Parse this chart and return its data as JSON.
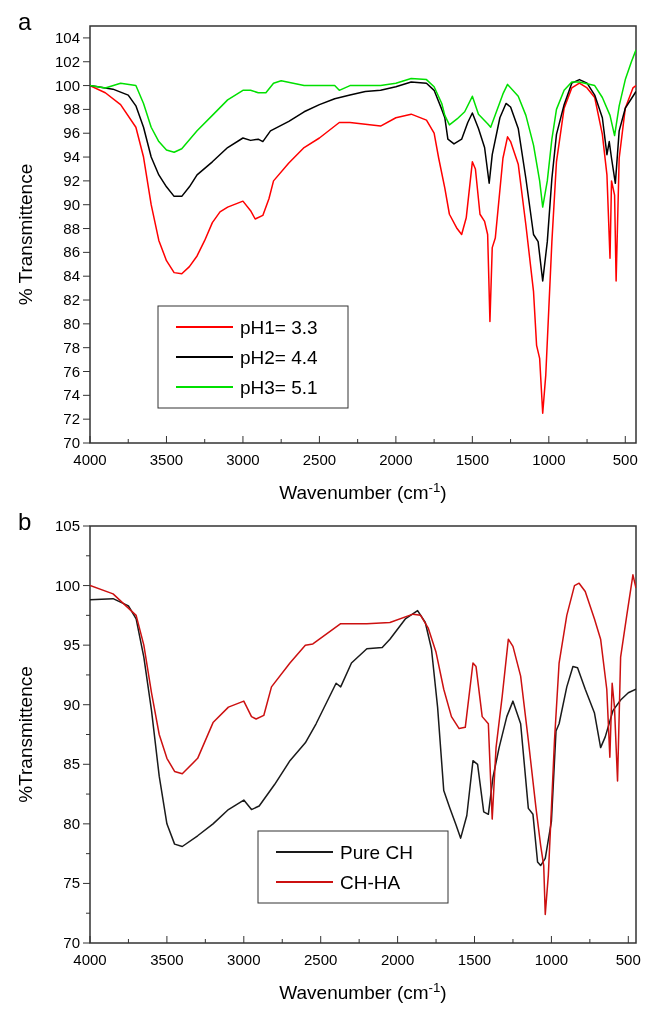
{
  "chart_data": [
    {
      "type": "line",
      "title": "a",
      "xlabel": "Wavenumber (cm$^{-1}$)",
      "ylabel": "% Transmittence",
      "xlim": [
        4000,
        430
      ],
      "ylim": [
        70,
        105
      ],
      "xticks": [
        4000,
        {
          "value": 3750,
          "label": null
        },
        3500,
        {
          "value": 3250,
          "label": null
        },
        3000,
        {
          "value": 2750,
          "label": null
        },
        2500,
        {
          "value": 2250,
          "label": null
        },
        2000,
        {
          "value": 1750,
          "label": null
        },
        1500,
        {
          "value": 1250,
          "label": null
        },
        1000,
        {
          "value": 750,
          "label": null
        },
        500
      ],
      "yticks": [
        70,
        72,
        74,
        76,
        78,
        80,
        82,
        84,
        86,
        88,
        90,
        92,
        94,
        96,
        98,
        100,
        102,
        104
      ],
      "grid": false,
      "legend": "bottom left",
      "line_style": "solid",
      "marker": "none",
      "series": [
        {
          "name": "pH1= 3.3",
          "color": "#ff0000",
          "x": [
            4000,
            3900,
            3800,
            3700,
            3650,
            3600,
            3550,
            3500,
            3450,
            3400,
            3350,
            3300,
            3250,
            3200,
            3150,
            3100,
            3000,
            2950,
            2920,
            2870,
            2830,
            2800,
            2700,
            2600,
            2500,
            2370,
            2300,
            2100,
            2000,
            1900,
            1800,
            1750,
            1720,
            1680,
            1650,
            1600,
            1570,
            1540,
            1500,
            1480,
            1450,
            1420,
            1400,
            1385,
            1370,
            1350,
            1300,
            1270,
            1250,
            1200,
            1150,
            1100,
            1080,
            1060,
            1040,
            1020,
            1000,
            980,
            950,
            900,
            850,
            800,
            750,
            700,
            650,
            620,
            600,
            590,
            570,
            560,
            540,
            500,
            450,
            430
          ],
          "values": [
            100,
            99.4,
            98.4,
            96.5,
            94,
            90,
            87,
            85.3,
            84.3,
            84.2,
            84.8,
            85.7,
            87,
            88.5,
            89.4,
            89.8,
            90.3,
            89.5,
            88.8,
            89.1,
            90.5,
            92,
            93.5,
            94.8,
            95.6,
            96.9,
            96.9,
            96.6,
            97.3,
            97.6,
            97.1,
            96,
            93.9,
            91.4,
            89.2,
            88,
            87.5,
            88.9,
            93.6,
            93,
            89.2,
            88.6,
            87.5,
            80.2,
            86.4,
            87.2,
            93.9,
            95.7,
            95.3,
            93.4,
            88.3,
            82.7,
            78.2,
            77.1,
            72.5,
            75.7,
            81.3,
            86.9,
            93.6,
            98.1,
            99.8,
            100.2,
            99.8,
            99,
            95.9,
            92.5,
            85.5,
            92,
            90.8,
            83.6,
            93.9,
            98.1,
            99.8,
            100
          ]
        },
        {
          "name": "pH2= 4.4",
          "color": "#000000",
          "x": [
            4000,
            3850,
            3750,
            3700,
            3650,
            3600,
            3550,
            3500,
            3450,
            3400,
            3350,
            3300,
            3200,
            3100,
            3000,
            2950,
            2900,
            2870,
            2820,
            2700,
            2600,
            2500,
            2400,
            2300,
            2200,
            2100,
            2000,
            1900,
            1800,
            1750,
            1700,
            1680,
            1660,
            1620,
            1570,
            1530,
            1500,
            1460,
            1420,
            1390,
            1370,
            1320,
            1280,
            1250,
            1200,
            1150,
            1100,
            1070,
            1040,
            1010,
            980,
            950,
            900,
            850,
            800,
            750,
            700,
            650,
            620,
            605,
            590,
            565,
            540,
            500,
            430
          ],
          "values": [
            100,
            99.7,
            99.2,
            98.3,
            96.5,
            94,
            92.5,
            91.5,
            90.7,
            90.7,
            91.5,
            92.5,
            93.6,
            94.8,
            95.6,
            95.4,
            95.5,
            95.3,
            96.2,
            97,
            97.8,
            98.4,
            98.9,
            99.2,
            99.5,
            99.6,
            99.9,
            100.3,
            100.2,
            99.6,
            98,
            97.3,
            95.5,
            95.1,
            95.5,
            96.9,
            97.7,
            96.4,
            94.8,
            91.8,
            94.2,
            97.3,
            98.5,
            98.2,
            96.4,
            92.2,
            87.5,
            86.9,
            83.6,
            86.9,
            92.2,
            95.9,
            98.4,
            100.2,
            100.5,
            100.2,
            99.2,
            97.3,
            94.2,
            95.3,
            93.9,
            91.8,
            96.2,
            98.1,
            99.5
          ]
        },
        {
          "name": "pH3= 5.1",
          "color": "#00e000",
          "x": [
            4000,
            3900,
            3800,
            3700,
            3650,
            3600,
            3550,
            3500,
            3450,
            3400,
            3300,
            3200,
            3100,
            3000,
            2950,
            2900,
            2850,
            2800,
            2750,
            2600,
            2500,
            2400,
            2370,
            2300,
            2100,
            2000,
            1900,
            1800,
            1750,
            1700,
            1680,
            1650,
            1600,
            1550,
            1500,
            1460,
            1400,
            1380,
            1300,
            1270,
            1200,
            1150,
            1100,
            1060,
            1040,
            1010,
            980,
            950,
            900,
            850,
            800,
            700,
            650,
            600,
            570,
            540,
            500,
            460,
            430
          ],
          "values": [
            100,
            99.8,
            100.2,
            100,
            98.5,
            96.5,
            95.3,
            94.6,
            94.4,
            94.7,
            96.2,
            97.5,
            98.8,
            99.6,
            99.6,
            99.4,
            99.4,
            100.2,
            100.4,
            100,
            100,
            100,
            99.6,
            100,
            100,
            100.2,
            100.6,
            100.5,
            99.9,
            98.5,
            97.5,
            96.7,
            97.2,
            97.8,
            99.1,
            97.6,
            96.8,
            96.5,
            99.3,
            100.1,
            99.1,
            97.5,
            95,
            92,
            89.8,
            92,
            95.5,
            98,
            99.6,
            100.3,
            100.3,
            100,
            99,
            97.5,
            95.8,
            98.3,
            100.5,
            102,
            103
          ]
        }
      ]
    },
    {
      "type": "line",
      "title": "b",
      "xlabel": "Wavenumber (cm$^{-1}$)",
      "ylabel": "%Transmittence",
      "xlim": [
        4000,
        450
      ],
      "ylim": [
        70,
        105
      ],
      "xticks": [
        4000,
        {
          "value": 3750,
          "label": null
        },
        3500,
        {
          "value": 3250,
          "label": null
        },
        3000,
        {
          "value": 2750,
          "label": null
        },
        2500,
        {
          "value": 2250,
          "label": null
        },
        2000,
        {
          "value": 1750,
          "label": null
        },
        1500,
        {
          "value": 1250,
          "label": null
        },
        1000,
        {
          "value": 750,
          "label": null
        },
        500
      ],
      "yticks": [
        70,
        {
          "value": 72.5,
          "label": null
        },
        75,
        {
          "value": 77.5,
          "label": null
        },
        80,
        {
          "value": 82.5,
          "label": null
        },
        85,
        {
          "value": 87.5,
          "label": null
        },
        90,
        {
          "value": 92.5,
          "label": null
        },
        95,
        {
          "value": 97.5,
          "label": null
        },
        100,
        {
          "value": 102.5,
          "label": null
        },
        105
      ],
      "grid": false,
      "legend": "bottom",
      "line_style": "solid",
      "marker": "none",
      "series": [
        {
          "name": "Pure CH",
          "color": "#1a1a1a",
          "x": [
            4000,
            3850,
            3750,
            3700,
            3650,
            3600,
            3550,
            3500,
            3450,
            3400,
            3300,
            3200,
            3100,
            3000,
            2950,
            2900,
            2800,
            2700,
            2600,
            2530,
            2400,
            2370,
            2300,
            2200,
            2100,
            2050,
            1950,
            1870,
            1820,
            1780,
            1740,
            1700,
            1660,
            1620,
            1590,
            1550,
            1510,
            1480,
            1440,
            1410,
            1380,
            1340,
            1290,
            1250,
            1200,
            1150,
            1120,
            1090,
            1070,
            1040,
            1000,
            970,
            950,
            900,
            860,
            830,
            780,
            720,
            680,
            650,
            600,
            550,
            500,
            450
          ],
          "values": [
            98.8,
            98.9,
            98.3,
            97.2,
            94,
            89.5,
            84,
            80,
            78.3,
            78.1,
            79,
            80,
            81.2,
            82,
            81.2,
            81.5,
            83.3,
            85.3,
            86.8,
            88.4,
            91.8,
            91.5,
            93.5,
            94.7,
            94.8,
            95.5,
            97.2,
            97.9,
            96.9,
            94.7,
            89.8,
            82.8,
            81.3,
            79.9,
            78.8,
            80.7,
            85.3,
            85,
            81,
            80.8,
            83.9,
            86.4,
            89,
            90.3,
            88.4,
            81.3,
            80.8,
            76.8,
            76.5,
            77.1,
            80.2,
            87.8,
            88.4,
            91.5,
            93.2,
            93.1,
            91.3,
            89.3,
            86.4,
            87.3,
            89.5,
            90.4,
            91,
            91.3
          ]
        },
        {
          "name": "CH-HA",
          "color": "#cc1010",
          "x": [
            4000,
            3850,
            3700,
            3650,
            3600,
            3550,
            3500,
            3450,
            3400,
            3300,
            3200,
            3100,
            3000,
            2950,
            2920,
            2870,
            2820,
            2700,
            2600,
            2551,
            2370,
            2200,
            2050,
            1900,
            1850,
            1800,
            1750,
            1700,
            1650,
            1600,
            1560,
            1510,
            1490,
            1450,
            1410,
            1385,
            1360,
            1320,
            1280,
            1250,
            1200,
            1150,
            1100,
            1070,
            1050,
            1040,
            1020,
            1000,
            980,
            950,
            900,
            850,
            820,
            780,
            720,
            680,
            640,
            620,
            605,
            590,
            570,
            550,
            510,
            470,
            450
          ],
          "values": [
            100,
            99.3,
            97.5,
            95,
            91,
            87.5,
            85.5,
            84.4,
            84.2,
            85.5,
            88.5,
            89.8,
            90.3,
            89,
            88.8,
            89.1,
            91.5,
            93.5,
            95,
            95.1,
            96.8,
            96.8,
            96.9,
            97.6,
            97.5,
            96.4,
            94.4,
            91.3,
            89,
            88,
            88.1,
            93.5,
            93.2,
            89,
            88.4,
            80.4,
            86.4,
            90.7,
            95.5,
            94.9,
            92.4,
            87,
            81.3,
            78.2,
            76.5,
            72.4,
            75.7,
            81.3,
            87,
            93.5,
            97.5,
            100,
            100.2,
            99.5,
            97.2,
            95.5,
            91.3,
            85.6,
            91.8,
            89.8,
            83.6,
            94,
            97.5,
            100.9,
            99.8
          ]
        }
      ]
    }
  ]
}
